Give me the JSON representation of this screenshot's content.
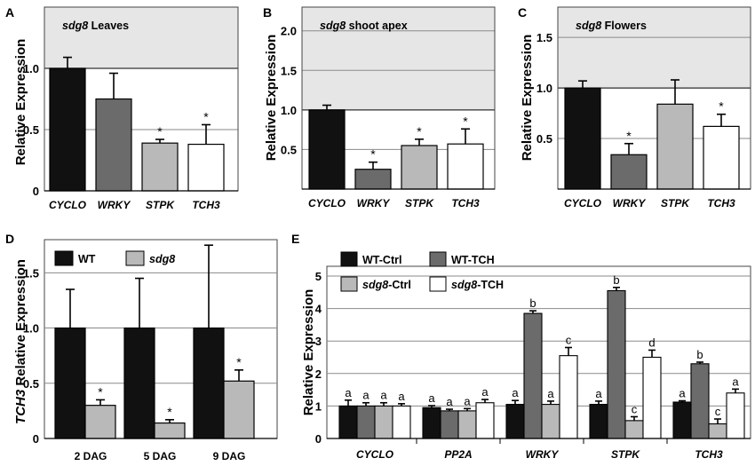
{
  "colors": {
    "black": "#111111",
    "dark": "#6b6b6b",
    "light": "#b9b9b9",
    "white": "#ffffff",
    "shade": "#e6e6e6",
    "grid": "#8a8a8a"
  },
  "chart_data": [
    {
      "id": "A",
      "type": "bar",
      "title_italic": "sdg8",
      "title_rest": " Leaves",
      "ylabel": "Relative Expression",
      "ylim": [
        0,
        1.5
      ],
      "yticks": [
        "0",
        "0.5",
        "1.0"
      ],
      "ytick_values": [
        0,
        0.5,
        1.0
      ],
      "shaded_above": 1.0,
      "categories": [
        "CYCLO",
        "WRKY",
        "STPK",
        "TCH3"
      ],
      "values": [
        1.0,
        0.75,
        0.39,
        0.38
      ],
      "errors": [
        0.09,
        0.21,
        0.03,
        0.16
      ],
      "bar_colors": [
        "black",
        "dark",
        "light",
        "white"
      ],
      "annotations": [
        "",
        "",
        "*",
        "*"
      ]
    },
    {
      "id": "B",
      "type": "bar",
      "title_italic": "sdg8",
      "title_rest": " shoot apex",
      "ylabel": "Relative Expression",
      "ylim": [
        0,
        2.3
      ],
      "yticks": [
        "0.5",
        "1.0",
        "1.5",
        "2.0"
      ],
      "ytick_values": [
        0.5,
        1.0,
        1.5,
        2.0
      ],
      "shaded_above": 1.0,
      "categories": [
        "CYCLO",
        "WRKY",
        "STPK",
        "TCH3"
      ],
      "values": [
        1.0,
        0.25,
        0.55,
        0.57
      ],
      "errors": [
        0.06,
        0.09,
        0.08,
        0.19
      ],
      "bar_colors": [
        "black",
        "dark",
        "light",
        "white"
      ],
      "annotations": [
        "",
        "*",
        "*",
        "*"
      ]
    },
    {
      "id": "C",
      "type": "bar",
      "title_italic": "sdg8",
      "title_rest": " Flowers",
      "ylabel": "Relative Expression",
      "ylim": [
        0,
        1.8
      ],
      "yticks": [
        "0.5",
        "1.0",
        "1.5"
      ],
      "ytick_values": [
        0.5,
        1.0,
        1.5
      ],
      "shaded_above": 1.0,
      "categories": [
        "CYCLO",
        "WRKY",
        "STPK",
        "TCH3"
      ],
      "values": [
        1.0,
        0.34,
        0.84,
        0.62
      ],
      "errors": [
        0.07,
        0.11,
        0.24,
        0.12
      ],
      "bar_colors": [
        "black",
        "dark",
        "light",
        "white"
      ],
      "annotations": [
        "",
        "*",
        "",
        "*"
      ]
    },
    {
      "id": "D",
      "type": "bar",
      "ylabel_italic": "TCH3",
      "ylabel_rest": " Relative Expression",
      "ylim": [
        0,
        1.8
      ],
      "yticks": [
        "0",
        "0.5",
        "1.0",
        "1.5"
      ],
      "ytick_values": [
        0,
        0.5,
        1.0,
        1.5
      ],
      "categories": [
        "2 DAG",
        "5 DAG",
        "9 DAG"
      ],
      "series": [
        {
          "name": "WT",
          "color": "black",
          "values": [
            1.0,
            1.0,
            1.0
          ],
          "errors": [
            0.35,
            0.45,
            0.75
          ],
          "annotations": [
            "",
            "",
            ""
          ]
        },
        {
          "name": "sdg8",
          "name_italic": true,
          "color": "light",
          "values": [
            0.3,
            0.14,
            0.52
          ],
          "errors": [
            0.05,
            0.03,
            0.1
          ],
          "annotations": [
            "*",
            "*",
            "*"
          ]
        }
      ],
      "legend": [
        "WT",
        "sdg8"
      ]
    },
    {
      "id": "E",
      "type": "bar",
      "ylabel": "Relative Expression",
      "ylim": [
        0,
        5.3
      ],
      "yticks": [
        "0",
        "1",
        "2",
        "3",
        "4",
        "5"
      ],
      "ytick_values": [
        0,
        1,
        2,
        3,
        4,
        5
      ],
      "categories": [
        "CYCLO",
        "PP2A",
        "WRKY",
        "STPK",
        "TCH3"
      ],
      "series": [
        {
          "name_italic": "WT",
          "name_rest": "-Ctrl",
          "color": "black",
          "values": [
            1.0,
            0.95,
            1.05,
            1.05,
            1.12
          ],
          "errors": [
            0.18,
            0.06,
            0.12,
            0.1,
            0.04
          ],
          "annotations": [
            "a",
            "a",
            "a",
            "a",
            "a"
          ]
        },
        {
          "name_italic": "WT",
          "name_rest": "-TCH",
          "color": "dark",
          "values": [
            1.0,
            0.85,
            3.85,
            4.55,
            2.3
          ],
          "errors": [
            0.1,
            0.05,
            0.08,
            0.1,
            0.05
          ],
          "annotations": [
            "a",
            "a",
            "b",
            "b",
            "b"
          ]
        },
        {
          "name_italic": "sdg8",
          "name_rest": "-Ctrl",
          "color": "light",
          "values": [
            1.0,
            0.85,
            1.05,
            0.55,
            0.45
          ],
          "errors": [
            0.1,
            0.07,
            0.1,
            0.12,
            0.15
          ],
          "annotations": [
            "a",
            "a",
            "a",
            "c",
            "c"
          ]
        },
        {
          "name_italic": "sdg8",
          "name_rest": "-TCH",
          "color": "white",
          "values": [
            1.0,
            1.1,
            2.55,
            2.5,
            1.4
          ],
          "errors": [
            0.07,
            0.1,
            0.25,
            0.22,
            0.12
          ],
          "annotations": [
            "a",
            "a",
            "c",
            "d",
            "a"
          ]
        }
      ],
      "legend": [
        "WT-Ctrl",
        "sdg8-Ctrl",
        "WT-TCH",
        "sdg8-TCH"
      ]
    }
  ]
}
